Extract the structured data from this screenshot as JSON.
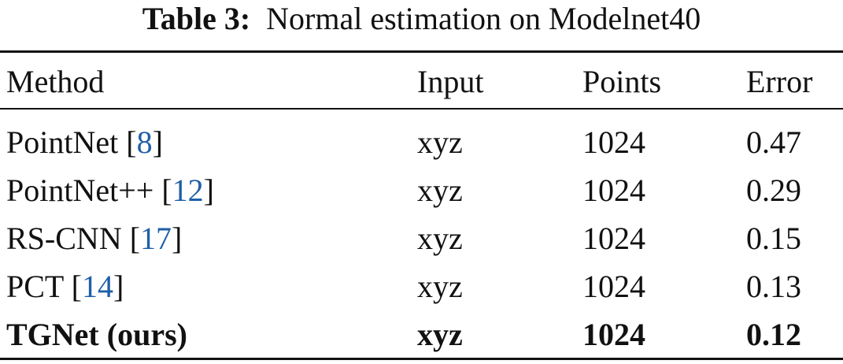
{
  "caption": {
    "label": "Table 3:",
    "text": "Normal estimation on Modelnet40"
  },
  "table": {
    "header": [
      "Method",
      "Input",
      "Points",
      "Error"
    ],
    "rows": [
      {
        "method": "PointNet",
        "cite": "[8]",
        "input": "xyz",
        "points": 1024,
        "error": 0.47
      },
      {
        "method": "PointNet++",
        "cite": "[12]",
        "input": "xyz",
        "points": 1024,
        "error": 0.29
      },
      {
        "method": "RS-CNN",
        "cite": "[17]",
        "input": "xyz",
        "points": 1024,
        "error": 0.15
      },
      {
        "method": "PCT",
        "cite": "[14]",
        "input": "xyz",
        "points": 1024,
        "error": 0.13
      },
      {
        "method": "TGNet (ours)",
        "input": "xyz",
        "points": 1024,
        "error": 0.12,
        "bold": true
      }
    ]
  }
}
